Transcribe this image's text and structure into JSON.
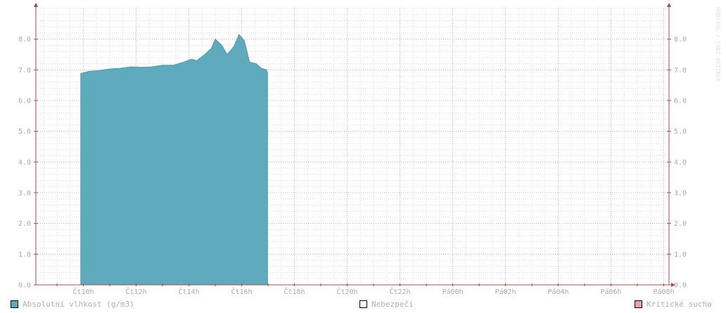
{
  "chart_data": {
    "type": "area",
    "title": "",
    "xlabel": "",
    "ylabel": "",
    "ylim": [
      0,
      9
    ],
    "y_ticks": [
      "0.0",
      "1.0",
      "2.0",
      "3.0",
      "4.0",
      "5.0",
      "6.0",
      "7.0",
      "8.0"
    ],
    "x_ticks": [
      "Čt10h",
      "Čt12h",
      "Čt14h",
      "Čt16h",
      "Čt18h",
      "Čt20h",
      "Čt22h",
      "Pá00h",
      "Pá02h",
      "Pá04h",
      "Pá06h",
      "Pá08h"
    ],
    "x_range_hours": [
      8.2,
      32.2
    ],
    "grid": true,
    "legend_position": "bottom",
    "series": [
      {
        "name": "Absolutní vlhkost (g/m3)",
        "color": "#5fabbd",
        "points": [
          {
            "h": 9.9,
            "y": 6.88
          },
          {
            "h": 10.2,
            "y": 6.95
          },
          {
            "h": 10.6,
            "y": 6.98
          },
          {
            "h": 11.0,
            "y": 7.03
          },
          {
            "h": 11.4,
            "y": 7.05
          },
          {
            "h": 11.8,
            "y": 7.1
          },
          {
            "h": 12.2,
            "y": 7.08
          },
          {
            "h": 12.6,
            "y": 7.1
          },
          {
            "h": 13.0,
            "y": 7.15
          },
          {
            "h": 13.4,
            "y": 7.15
          },
          {
            "h": 13.8,
            "y": 7.25
          },
          {
            "h": 14.1,
            "y": 7.35
          },
          {
            "h": 14.3,
            "y": 7.3
          },
          {
            "h": 14.6,
            "y": 7.5
          },
          {
            "h": 14.85,
            "y": 7.7
          },
          {
            "h": 15.0,
            "y": 8.0
          },
          {
            "h": 15.25,
            "y": 7.8
          },
          {
            "h": 15.45,
            "y": 7.5
          },
          {
            "h": 15.7,
            "y": 7.75
          },
          {
            "h": 15.9,
            "y": 8.15
          },
          {
            "h": 16.1,
            "y": 7.95
          },
          {
            "h": 16.3,
            "y": 7.25
          },
          {
            "h": 16.55,
            "y": 7.2
          },
          {
            "h": 16.75,
            "y": 7.05
          },
          {
            "h": 16.95,
            "y": 7.0
          },
          {
            "h": 16.98,
            "y": 6.9
          }
        ]
      }
    ],
    "legend": [
      {
        "name": "Absolutní vlhkost (g/m3)",
        "color": "#5fabbd"
      },
      {
        "name": "Nebezpečí",
        "color": "#ffffff"
      },
      {
        "name": "Kritické sucho",
        "color": "#f0a0a0"
      }
    ]
  },
  "watermark": "RRDTOOL / TOBI OETIKER"
}
